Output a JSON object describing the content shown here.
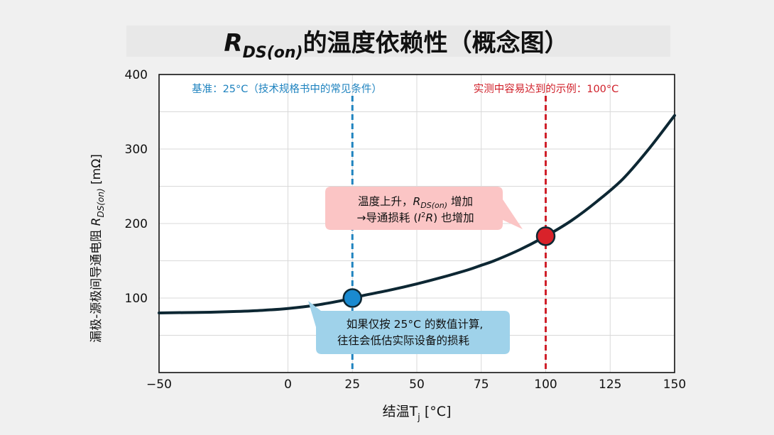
{
  "title": {
    "main": "R",
    "sub": "DS(on)",
    "rest": "的温度依赖性（概念图）"
  },
  "colors": {
    "background": "#f0f0f0",
    "plot_bg": "#ffffff",
    "curve": "#0d2733",
    "baseline_line": "#1f83bf",
    "hot_line": "#d0202a",
    "blue_marker": "#1a8ad0",
    "red_marker": "#d9222a",
    "blue_box": "#9fd2ea",
    "pink_box": "#fbc5c5"
  },
  "chart_data": {
    "type": "line",
    "title": "RDS(on)的温度依赖性（概念图）",
    "xlabel": "结温Tj [°C]",
    "xlabel_main": "结温T",
    "xlabel_sub": "j",
    "xlabel_unit": " [°C]",
    "ylabel": "漏极-源极间导通电阻 RDS(on) [mΩ]",
    "ylabel_main": "漏极-源极间导通电阻 ",
    "ylabel_r": "R",
    "ylabel_sub": "DS(on)",
    "ylabel_unit": " [mΩ]",
    "xlim": [
      -50,
      150
    ],
    "ylim": [
      0,
      400
    ],
    "xticks": [
      -50,
      0,
      25,
      50,
      75,
      100,
      125,
      150
    ],
    "xtick_labels": [
      "−50",
      "0",
      "25",
      "50",
      "75",
      "100",
      "125",
      "150"
    ],
    "yticks": [
      100,
      200,
      300,
      400
    ],
    "ytick_labels": [
      "100",
      "200",
      "300",
      "400"
    ],
    "grid": true,
    "series": [
      {
        "x": [
          -50,
          -40,
          -30,
          -20,
          -10,
          0,
          10,
          20,
          25,
          30,
          40,
          50,
          60,
          70,
          75,
          80,
          90,
          100,
          110,
          120,
          130,
          140,
          150
        ],
        "y": [
          80,
          80.5,
          81,
          82,
          83.5,
          86,
          90,
          96,
          100,
          104,
          111,
          119,
          128,
          138,
          144,
          150,
          165,
          183,
          204,
          230,
          260,
          300,
          345
        ]
      }
    ],
    "markers": [
      {
        "x": 25,
        "y": 100,
        "color": "#1a8ad0"
      },
      {
        "x": 100,
        "y": 183,
        "color": "#d9222a"
      }
    ],
    "vlines": [
      {
        "x": 25,
        "label": "基准：25°C（技术规格书中的常见条件）",
        "color": "#1f83bf"
      },
      {
        "x": 100,
        "label": "实测中容易达到的示例：100°C",
        "color": "#d0202a"
      }
    ],
    "annotations": [
      {
        "id": "hot",
        "line1_a": "温度上升，",
        "line1_r": "R",
        "line1_sub": "DS(on)",
        "line1_b": " 增加",
        "line2_a": "→导通损耗 (",
        "line2_i": "I",
        "line2_sup": "2",
        "line2_r": "R",
        "line2_b": ") 也增加"
      },
      {
        "id": "base",
        "line1": "如果仅按 25°C 的数值计算,",
        "line2": "往往会低估实际设备的损耗"
      }
    ]
  }
}
